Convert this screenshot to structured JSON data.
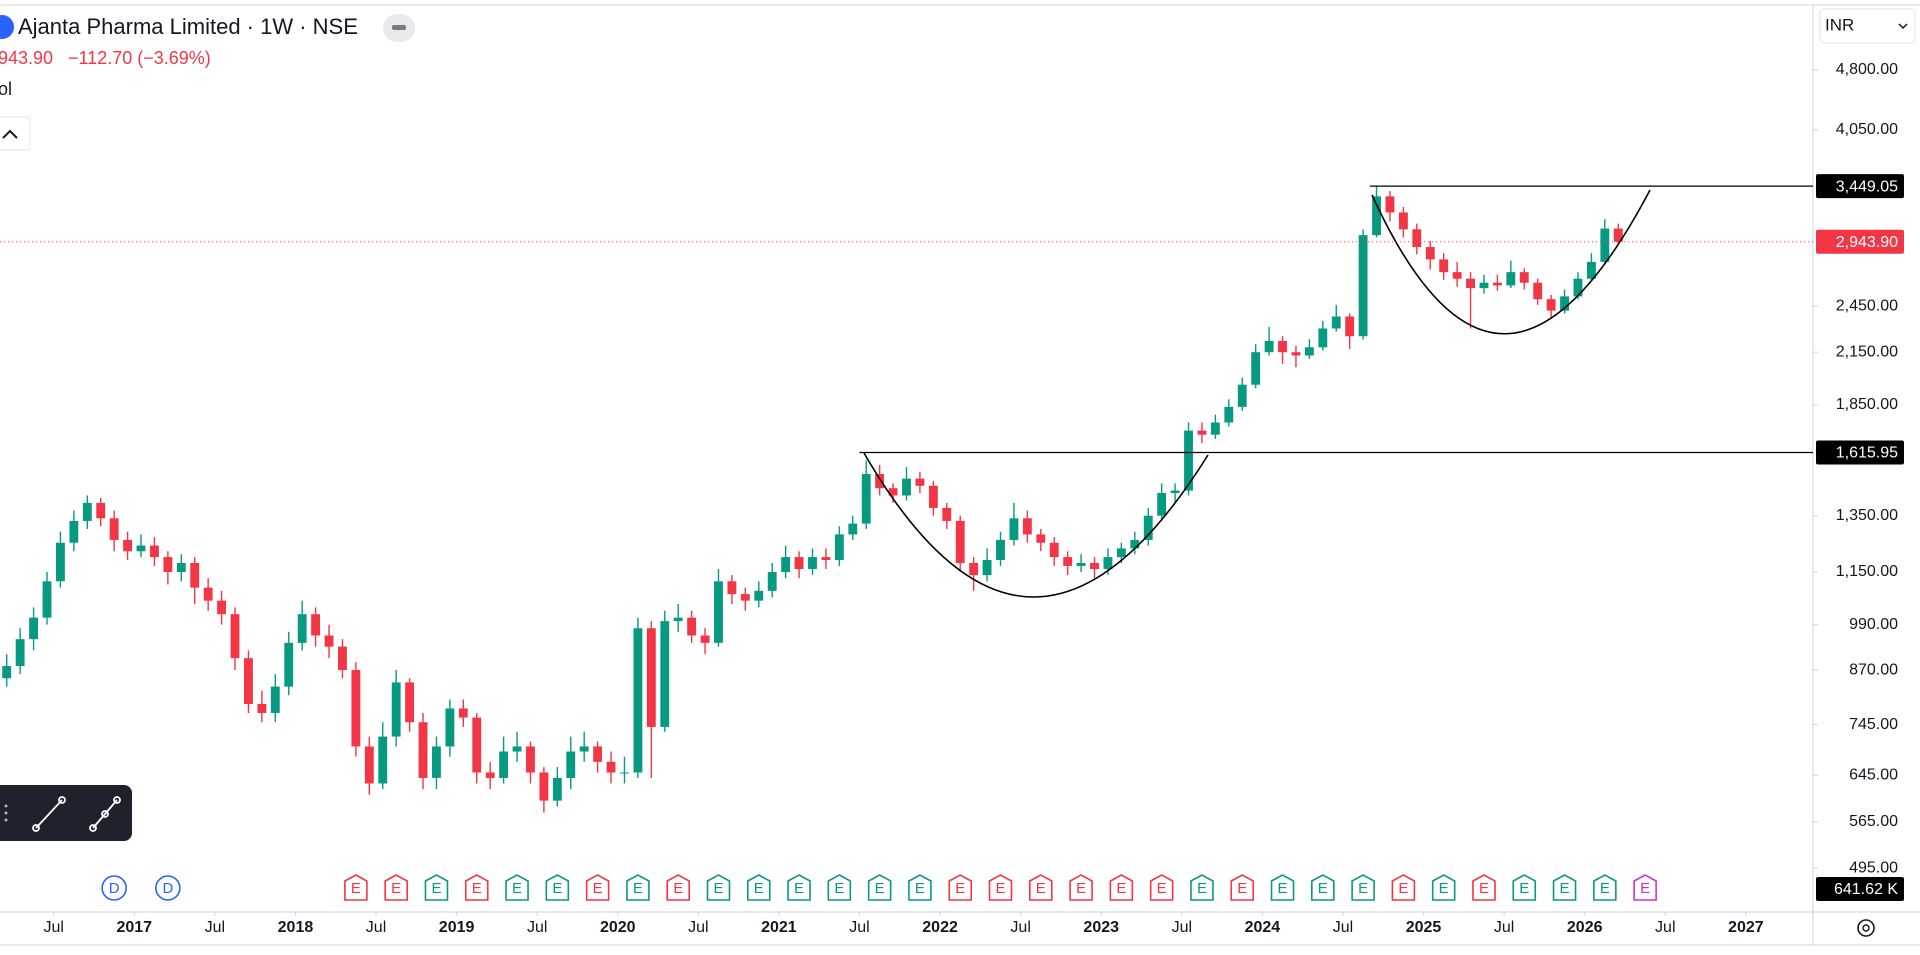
{
  "chart_data": {
    "type": "candlestick",
    "title": "Ajanta Pharma Limited · 1W · NSE",
    "last_price": {
      "value": 2943.9,
      "label": "2,943.90"
    },
    "change": "−112.70 (−3.69%)",
    "volume_title": "Vol",
    "volume_label": "641.62 K",
    "currency": "INR",
    "up_color": "#089981",
    "down_color": "#f23645",
    "log_scale": true,
    "grid": false,
    "ylim": [
      437,
      5858
    ],
    "yticks": [
      {
        "value": 4800,
        "label": "4,800.00"
      },
      {
        "value": 4050,
        "label": "4,050.00"
      },
      {
        "value": 2450,
        "label": "2,450.00"
      },
      {
        "value": 2150,
        "label": "2,150.00"
      },
      {
        "value": 1850,
        "label": "1,850.00"
      },
      {
        "value": 1350,
        "label": "1,350.00"
      },
      {
        "value": 1150,
        "label": "1,150.00"
      },
      {
        "value": 990,
        "label": "990.00"
      },
      {
        "value": 870,
        "label": "870.00"
      },
      {
        "value": 745,
        "label": "745.00"
      },
      {
        "value": 645,
        "label": "645.00"
      },
      {
        "value": 565,
        "label": "565.00"
      },
      {
        "value": 495,
        "label": "495.00"
      }
    ],
    "xlim": [
      "2016-03",
      "2027-06"
    ],
    "xticks": [
      {
        "value": "2016-07",
        "label": "Jul"
      },
      {
        "value": "2017-01",
        "label": "2017"
      },
      {
        "value": "2017-07",
        "label": "Jul"
      },
      {
        "value": "2018-01",
        "label": "2018"
      },
      {
        "value": "2018-07",
        "label": "Jul"
      },
      {
        "value": "2019-01",
        "label": "2019"
      },
      {
        "value": "2019-07",
        "label": "Jul"
      },
      {
        "value": "2020-01",
        "label": "2020"
      },
      {
        "value": "2020-07",
        "label": "Jul"
      },
      {
        "value": "2021-01",
        "label": "2021"
      },
      {
        "value": "2021-07",
        "label": "Jul"
      },
      {
        "value": "2022-01",
        "label": "2022"
      },
      {
        "value": "2022-07",
        "label": "Jul"
      },
      {
        "value": "2023-01",
        "label": "2023"
      },
      {
        "value": "2023-07",
        "label": "Jul"
      },
      {
        "value": "2024-01",
        "label": "2024"
      },
      {
        "value": "2024-07",
        "label": "Jul"
      },
      {
        "value": "2025-01",
        "label": "2025"
      },
      {
        "value": "2025-07",
        "label": "Jul"
      },
      {
        "value": "2026-01",
        "label": "2026"
      },
      {
        "value": "2026-07",
        "label": "Jul"
      },
      {
        "value": "2027-01",
        "label": "2027"
      }
    ],
    "levels": [
      {
        "value": 3449.05,
        "label": "3,449.05",
        "start": "2024-09"
      },
      {
        "value": 1615.95,
        "label": "1,615.95",
        "start": "2021-07"
      }
    ],
    "x": [
      "2016-03",
      "2016-04",
      "2016-05",
      "2016-06",
      "2016-07",
      "2016-08",
      "2016-09",
      "2016-10",
      "2016-11",
      "2016-12",
      "2017-01",
      "2017-02",
      "2017-03",
      "2017-04",
      "2017-05",
      "2017-06",
      "2017-07",
      "2017-08",
      "2017-09",
      "2017-10",
      "2017-11",
      "2017-12",
      "2018-01",
      "2018-02",
      "2018-03",
      "2018-04",
      "2018-05",
      "2018-06",
      "2018-07",
      "2018-08",
      "2018-09",
      "2018-10",
      "2018-11",
      "2018-12",
      "2019-01",
      "2019-02",
      "2019-03",
      "2019-04",
      "2019-05",
      "2019-06",
      "2019-07",
      "2019-08",
      "2019-09",
      "2019-10",
      "2019-11",
      "2019-12",
      "2020-01",
      "2020-02",
      "2020-03",
      "2020-04",
      "2020-05",
      "2020-06",
      "2020-07",
      "2020-08",
      "2020-09",
      "2020-10",
      "2020-11",
      "2020-12",
      "2021-01",
      "2021-02",
      "2021-03",
      "2021-04",
      "2021-05",
      "2021-06",
      "2021-07",
      "2021-08",
      "2021-09",
      "2021-10",
      "2021-11",
      "2021-12",
      "2022-01",
      "2022-02",
      "2022-03",
      "2022-04",
      "2022-05",
      "2022-06",
      "2022-07",
      "2022-08",
      "2022-09",
      "2022-10",
      "2022-11",
      "2022-12",
      "2023-01",
      "2023-02",
      "2023-03",
      "2023-04",
      "2023-05",
      "2023-06",
      "2023-07",
      "2023-08",
      "2023-09",
      "2023-10",
      "2023-11",
      "2023-12",
      "2024-01",
      "2024-02",
      "2024-03",
      "2024-04",
      "2024-05",
      "2024-06",
      "2024-07",
      "2024-08",
      "2024-09",
      "2024-10",
      "2024-11",
      "2024-12",
      "2025-01",
      "2025-02",
      "2025-03",
      "2025-04",
      "2025-05",
      "2025-06",
      "2025-07",
      "2025-08",
      "2025-09",
      "2025-10",
      "2025-11",
      "2025-12",
      "2026-01",
      "2026-02",
      "2026-03"
    ],
    "candles": [
      [
        850,
        910,
        830,
        880
      ],
      [
        880,
        980,
        860,
        950
      ],
      [
        950,
        1040,
        920,
        1010
      ],
      [
        1010,
        1150,
        990,
        1120
      ],
      [
        1120,
        1290,
        1100,
        1250
      ],
      [
        1250,
        1370,
        1220,
        1330
      ],
      [
        1330,
        1430,
        1300,
        1400
      ],
      [
        1400,
        1420,
        1310,
        1340
      ],
      [
        1340,
        1370,
        1220,
        1260
      ],
      [
        1260,
        1290,
        1190,
        1220
      ],
      [
        1220,
        1280,
        1200,
        1240
      ],
      [
        1240,
        1270,
        1170,
        1200
      ],
      [
        1200,
        1220,
        1110,
        1150
      ],
      [
        1150,
        1210,
        1120,
        1180
      ],
      [
        1180,
        1200,
        1050,
        1100
      ],
      [
        1100,
        1130,
        1030,
        1060
      ],
      [
        1060,
        1090,
        990,
        1020
      ],
      [
        1020,
        1040,
        870,
        900
      ],
      [
        900,
        920,
        770,
        790
      ],
      [
        790,
        820,
        750,
        770
      ],
      [
        770,
        860,
        750,
        830
      ],
      [
        830,
        970,
        810,
        940
      ],
      [
        940,
        1060,
        920,
        1020
      ],
      [
        1020,
        1040,
        930,
        960
      ],
      [
        960,
        990,
        900,
        930
      ],
      [
        930,
        950,
        850,
        870
      ],
      [
        870,
        890,
        680,
        700
      ],
      [
        700,
        720,
        610,
        630
      ],
      [
        630,
        750,
        620,
        720
      ],
      [
        720,
        870,
        700,
        840
      ],
      [
        840,
        850,
        730,
        750
      ],
      [
        750,
        770,
        620,
        640
      ],
      [
        640,
        720,
        620,
        700
      ],
      [
        700,
        800,
        680,
        780
      ],
      [
        780,
        800,
        740,
        760
      ],
      [
        760,
        770,
        630,
        650
      ],
      [
        650,
        670,
        620,
        640
      ],
      [
        640,
        720,
        630,
        690
      ],
      [
        690,
        730,
        670,
        700
      ],
      [
        700,
        710,
        630,
        650
      ],
      [
        650,
        660,
        580,
        600
      ],
      [
        600,
        660,
        590,
        640
      ],
      [
        640,
        720,
        620,
        690
      ],
      [
        690,
        730,
        670,
        700
      ],
      [
        700,
        710,
        650,
        670
      ],
      [
        670,
        690,
        630,
        650
      ],
      [
        650,
        680,
        630,
        650
      ],
      [
        650,
        1010,
        640,
        980
      ],
      [
        980,
        1000,
        640,
        740
      ],
      [
        740,
        1030,
        730,
        1000
      ],
      [
        1000,
        1050,
        970,
        1010
      ],
      [
        1010,
        1030,
        940,
        960
      ],
      [
        960,
        980,
        910,
        940
      ],
      [
        940,
        1160,
        930,
        1120
      ],
      [
        1120,
        1140,
        1050,
        1080
      ],
      [
        1080,
        1100,
        1030,
        1060
      ],
      [
        1060,
        1120,
        1040,
        1090
      ],
      [
        1090,
        1180,
        1070,
        1150
      ],
      [
        1150,
        1240,
        1130,
        1200
      ],
      [
        1200,
        1220,
        1130,
        1160
      ],
      [
        1160,
        1230,
        1140,
        1200
      ],
      [
        1200,
        1230,
        1160,
        1190
      ],
      [
        1190,
        1310,
        1170,
        1280
      ],
      [
        1280,
        1350,
        1260,
        1320
      ],
      [
        1320,
        1580,
        1300,
        1520
      ],
      [
        1520,
        1560,
        1430,
        1460
      ],
      [
        1460,
        1480,
        1400,
        1430
      ],
      [
        1430,
        1550,
        1410,
        1500
      ],
      [
        1500,
        1530,
        1440,
        1470
      ],
      [
        1470,
        1490,
        1350,
        1380
      ],
      [
        1380,
        1400,
        1300,
        1330
      ],
      [
        1330,
        1350,
        1150,
        1180
      ],
      [
        1180,
        1200,
        1090,
        1140
      ],
      [
        1140,
        1230,
        1120,
        1190
      ],
      [
        1190,
        1290,
        1170,
        1260
      ],
      [
        1260,
        1400,
        1240,
        1340
      ],
      [
        1340,
        1370,
        1250,
        1280
      ],
      [
        1280,
        1300,
        1220,
        1250
      ],
      [
        1250,
        1270,
        1170,
        1200
      ],
      [
        1200,
        1220,
        1140,
        1170
      ],
      [
        1170,
        1210,
        1150,
        1180
      ],
      [
        1180,
        1200,
        1130,
        1160
      ],
      [
        1160,
        1230,
        1140,
        1200
      ],
      [
        1200,
        1250,
        1180,
        1230
      ],
      [
        1230,
        1290,
        1210,
        1260
      ],
      [
        1260,
        1380,
        1240,
        1350
      ],
      [
        1350,
        1480,
        1330,
        1440
      ],
      [
        1440,
        1480,
        1400,
        1450
      ],
      [
        1450,
        1760,
        1430,
        1720
      ],
      [
        1720,
        1760,
        1660,
        1700
      ],
      [
        1700,
        1800,
        1680,
        1760
      ],
      [
        1760,
        1880,
        1740,
        1840
      ],
      [
        1840,
        2000,
        1820,
        1960
      ],
      [
        1960,
        2200,
        1940,
        2150
      ],
      [
        2150,
        2310,
        2130,
        2220
      ],
      [
        2220,
        2250,
        2080,
        2150
      ],
      [
        2150,
        2190,
        2060,
        2130
      ],
      [
        2130,
        2230,
        2110,
        2180
      ],
      [
        2180,
        2350,
        2160,
        2300
      ],
      [
        2300,
        2460,
        2280,
        2380
      ],
      [
        2380,
        2400,
        2170,
        2250
      ],
      [
        2250,
        3050,
        2230,
        3000
      ],
      [
        3000,
        3449.05,
        2980,
        3350
      ],
      [
        3350,
        3400,
        3120,
        3200
      ],
      [
        3200,
        3250,
        2980,
        3050
      ],
      [
        3050,
        3100,
        2840,
        2900
      ],
      [
        2900,
        2950,
        2720,
        2800
      ],
      [
        2800,
        2850,
        2640,
        2700
      ],
      [
        2700,
        2780,
        2590,
        2650
      ],
      [
        2650,
        2700,
        2300,
        2580
      ],
      [
        2580,
        2680,
        2540,
        2620
      ],
      [
        2620,
        2680,
        2560,
        2600
      ],
      [
        2600,
        2790,
        2580,
        2700
      ],
      [
        2700,
        2730,
        2570,
        2620
      ],
      [
        2620,
        2650,
        2460,
        2500
      ],
      [
        2500,
        2530,
        2370,
        2420
      ],
      [
        2420,
        2570,
        2400,
        2520
      ],
      [
        2520,
        2700,
        2500,
        2650
      ],
      [
        2650,
        2850,
        2630,
        2780
      ],
      [
        2780,
        3140,
        2760,
        3056.6
      ],
      [
        3056.6,
        3100,
        2920,
        2943.9
      ]
    ],
    "events": {
      "labels": [
        "D",
        "D",
        "E",
        "E",
        "E",
        "E",
        "E",
        "E",
        "E",
        "E",
        "E",
        "E",
        "E",
        "E",
        "E",
        "E",
        "E",
        "E",
        "E",
        "E",
        "E",
        "E",
        "E",
        "E",
        "E",
        "E",
        "E",
        "E",
        "E",
        "E",
        "E",
        "E",
        "E",
        "E",
        "E"
      ],
      "dates": [
        "2016-11",
        "2017-03",
        "2018-05",
        "2018-08",
        "2018-11",
        "2019-02",
        "2019-05",
        "2019-08",
        "2019-11",
        "2020-02",
        "2020-05",
        "2020-08",
        "2020-11",
        "2021-02",
        "2021-05",
        "2021-08",
        "2021-11",
        "2022-02",
        "2022-05",
        "2022-08",
        "2022-11",
        "2023-02",
        "2023-05",
        "2023-08",
        "2023-11",
        "2024-02",
        "2024-05",
        "2024-08",
        "2024-11",
        "2025-02",
        "2025-05",
        "2025-08",
        "2025-11",
        "2026-02",
        "2026-05"
      ],
      "colors": [
        "#2962ff",
        "#2962ff",
        "#f23645",
        "#f23645",
        "#089981",
        "#f23645",
        "#089981",
        "#089981",
        "#f23645",
        "#089981",
        "#f23645",
        "#089981",
        "#089981",
        "#089981",
        "#089981",
        "#089981",
        "#089981",
        "#f23645",
        "#f23645",
        "#f23645",
        "#f23645",
        "#f23645",
        "#f23645",
        "#089981",
        "#f23645",
        "#089981",
        "#089981",
        "#089981",
        "#f23645",
        "#089981",
        "#f23645",
        "#089981",
        "#089981",
        "#089981",
        "#cc33cc"
      ]
    }
  }
}
